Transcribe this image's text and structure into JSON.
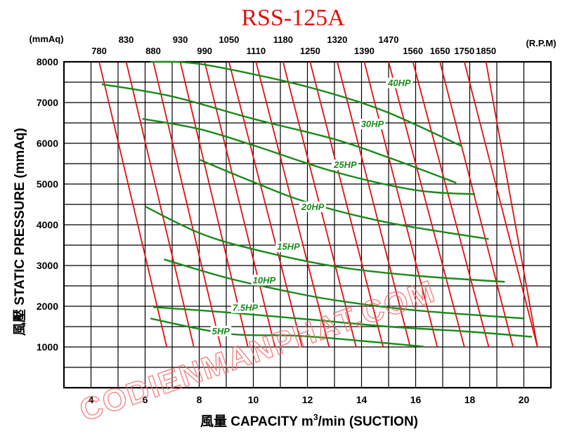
{
  "chart_data": {
    "type": "line",
    "title": "RSS-125A",
    "xlabel": "風量  CAPACITY  m³/min (SUCTION)",
    "xlabel_parts": {
      "prefix": "風量  CAPACITY  m",
      "sup": "3",
      "suffix": "/min (SUCTION)"
    },
    "ylabel": "風壓  STATIC  PRESSURE  (mmAq)",
    "top_left_unit": "(mmAq)",
    "top_right_unit": "(R.P.M)",
    "xlim": [
      3,
      21
    ],
    "ylim": [
      0,
      8000
    ],
    "x_ticks": [
      "4",
      "6",
      "8",
      "10",
      "12",
      "14",
      "16",
      "18",
      "20"
    ],
    "y_ticks": [
      "1000",
      "2000",
      "3000",
      "4000",
      "5000",
      "6000",
      "7000",
      "8000"
    ],
    "grid": true,
    "rpm_top_row": [
      "830",
      "930",
      "1050",
      "1180",
      "1320",
      "1470"
    ],
    "rpm_bottom_row": [
      "780",
      "880",
      "990",
      "1110",
      "1250",
      "1390",
      "1560",
      "1650",
      "1750",
      "1850"
    ],
    "rpm_series": [
      {
        "name": "780",
        "points": [
          [
            4.3,
            8000
          ],
          [
            6.8,
            1000
          ]
        ]
      },
      {
        "name": "830",
        "points": [
          [
            5.3,
            8000
          ],
          [
            7.8,
            1000
          ]
        ]
      },
      {
        "name": "880",
        "points": [
          [
            6.3,
            8000
          ],
          [
            8.8,
            1000
          ]
        ]
      },
      {
        "name": "930",
        "points": [
          [
            7.3,
            8000
          ],
          [
            9.8,
            1000
          ]
        ]
      },
      {
        "name": "990",
        "points": [
          [
            8.2,
            8000
          ],
          [
            10.8,
            1000
          ]
        ]
      },
      {
        "name": "1050",
        "points": [
          [
            9.1,
            8000
          ],
          [
            11.8,
            1000
          ]
        ]
      },
      {
        "name": "1110",
        "points": [
          [
            10.1,
            8000
          ],
          [
            12.8,
            1000
          ]
        ]
      },
      {
        "name": "1180",
        "points": [
          [
            11.1,
            8000
          ],
          [
            13.8,
            1000
          ]
        ]
      },
      {
        "name": "1250",
        "points": [
          [
            12.1,
            8000
          ],
          [
            14.8,
            1000
          ]
        ]
      },
      {
        "name": "1320",
        "points": [
          [
            13.1,
            8000
          ],
          [
            15.8,
            1000
          ]
        ]
      },
      {
        "name": "1390",
        "points": [
          [
            14.1,
            8000
          ],
          [
            16.8,
            1000
          ]
        ]
      },
      {
        "name": "1470",
        "points": [
          [
            15.0,
            8000
          ],
          [
            17.8,
            1000
          ]
        ]
      },
      {
        "name": "1560",
        "points": [
          [
            15.9,
            8000
          ],
          [
            18.7,
            1000
          ]
        ]
      },
      {
        "name": "1650",
        "points": [
          [
            16.9,
            8000
          ],
          [
            19.6,
            1000
          ]
        ]
      },
      {
        "name": "1750",
        "points": [
          [
            17.8,
            8000
          ],
          [
            20.5,
            1000
          ]
        ]
      },
      {
        "name": "1850",
        "points": [
          [
            18.6,
            8000
          ],
          [
            20.5,
            1000
          ]
        ]
      }
    ],
    "hp_series": [
      {
        "name": "5HP",
        "label_at": [
          8.8,
          1400
        ],
        "points": [
          [
            6.2,
            1700
          ],
          [
            9.0,
            1330
          ],
          [
            11.5,
            1280
          ],
          [
            13.5,
            1180
          ],
          [
            16.3,
            1010
          ]
        ]
      },
      {
        "name": "7.5HP",
        "label_at": [
          9.7,
          1970
        ],
        "points": [
          [
            6.3,
            1980
          ],
          [
            9.0,
            1850
          ],
          [
            12.0,
            1680
          ],
          [
            15.0,
            1500
          ],
          [
            17.9,
            1380
          ],
          [
            20.3,
            1250
          ]
        ]
      },
      {
        "name": "10HP",
        "label_at": [
          10.4,
          2650
        ],
        "points": [
          [
            6.7,
            3150
          ],
          [
            9.0,
            2700
          ],
          [
            11.0,
            2400
          ],
          [
            13.0,
            2150
          ],
          [
            16.0,
            1900
          ],
          [
            20.0,
            1700
          ]
        ]
      },
      {
        "name": "15HP",
        "label_at": [
          11.3,
          3470
        ],
        "points": [
          [
            6.0,
            4450
          ],
          [
            8.0,
            3800
          ],
          [
            10.0,
            3400
          ],
          [
            13.0,
            2980
          ],
          [
            16.0,
            2750
          ],
          [
            19.3,
            2600
          ]
        ]
      },
      {
        "name": "20HP",
        "label_at": [
          12.2,
          4450
        ],
        "points": [
          [
            8.0,
            5600
          ],
          [
            10.0,
            5050
          ],
          [
            12.0,
            4550
          ],
          [
            15.0,
            4050
          ],
          [
            18.7,
            3650
          ]
        ]
      },
      {
        "name": "25HP",
        "label_at": [
          13.4,
          5480
        ],
        "points": [
          [
            5.9,
            6600
          ],
          [
            8.0,
            6350
          ],
          [
            10.0,
            5950
          ],
          [
            13.0,
            5300
          ],
          [
            16.0,
            4850
          ],
          [
            18.2,
            4750
          ]
        ]
      },
      {
        "name": "30HP",
        "label_at": [
          14.4,
          6480
        ],
        "points": [
          [
            4.4,
            7450
          ],
          [
            7.0,
            7150
          ],
          [
            10.0,
            6600
          ],
          [
            13.0,
            6100
          ],
          [
            15.0,
            5650
          ],
          [
            17.5,
            5030
          ]
        ]
      },
      {
        "name": "40HP",
        "label_at": [
          15.4,
          7490
        ],
        "points": [
          [
            6.2,
            8000
          ],
          [
            8.0,
            7950
          ],
          [
            11.0,
            7550
          ],
          [
            13.0,
            7200
          ],
          [
            15.0,
            6750
          ],
          [
            17.7,
            5930
          ]
        ]
      }
    ]
  },
  "watermark_text": "CODIENMANPHAT.COM",
  "colors": {
    "rpm": "#e01010",
    "hp": "#1a8a1a",
    "title": "#e01010",
    "grid": "#000000",
    "watermark": "#f07070"
  }
}
